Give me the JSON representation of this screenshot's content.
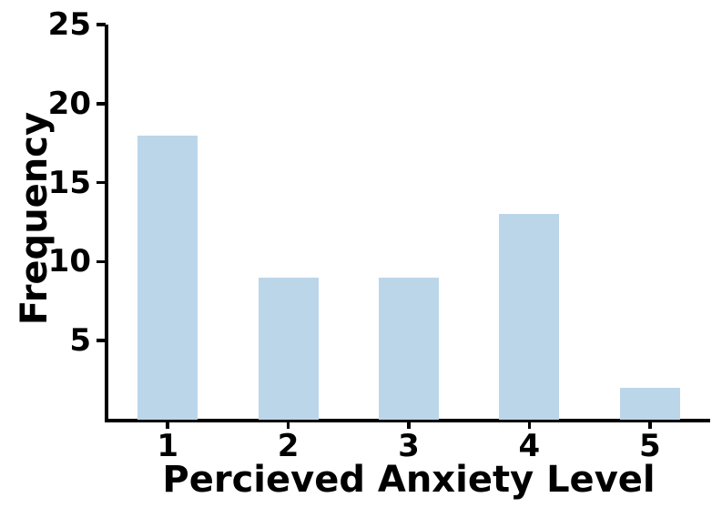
{
  "chart_data": {
    "type": "bar",
    "title": "",
    "xlabel": "Percieved Anxiety Level",
    "ylabel": "Frequency",
    "categories": [
      "1",
      "2",
      "3",
      "4",
      "5"
    ],
    "values": [
      18,
      9,
      9,
      13,
      2
    ],
    "ylim": [
      0,
      25
    ],
    "yticks": [
      5,
      10,
      15,
      20,
      25
    ],
    "bar_color": "#BCD6E9",
    "axis_color": "#000000",
    "background_color": "#FFFFFF",
    "grid": false,
    "legend": null,
    "bar_width_fraction": 0.5
  }
}
